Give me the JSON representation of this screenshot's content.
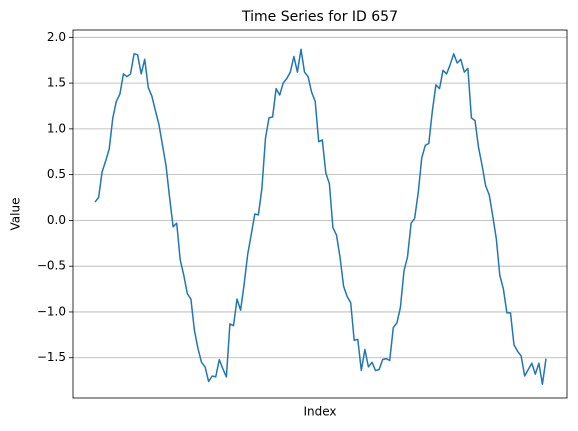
{
  "chart_data": {
    "type": "line",
    "title": "Time Series for ID 657",
    "xlabel": "Index",
    "ylabel": "Value",
    "series": [
      {
        "name": "Value",
        "color": "#1f77b4",
        "values": [
          0.2,
          0.25,
          0.53,
          0.65,
          0.78,
          1.12,
          1.3,
          1.38,
          1.6,
          1.57,
          1.6,
          1.82,
          1.81,
          1.6,
          1.76,
          1.45,
          1.36,
          1.2,
          1.05,
          0.82,
          0.6,
          0.25,
          -0.07,
          -0.03,
          -0.43,
          -0.6,
          -0.8,
          -0.86,
          -1.2,
          -1.4,
          -1.55,
          -1.6,
          -1.76,
          -1.7,
          -1.71,
          -1.52,
          -1.62,
          -1.71,
          -1.13,
          -1.15,
          -0.86,
          -0.98,
          -0.7,
          -0.37,
          -0.15,
          0.07,
          0.06,
          0.35,
          0.9,
          1.12,
          1.13,
          1.44,
          1.37,
          1.5,
          1.55,
          1.62,
          1.79,
          1.62,
          1.87,
          1.62,
          1.57,
          1.4,
          1.3,
          0.86,
          0.88,
          0.52,
          0.4,
          -0.08,
          -0.16,
          -0.4,
          -0.72,
          -0.83,
          -0.9,
          -1.31,
          -1.3,
          -1.64,
          -1.41,
          -1.6,
          -1.55,
          -1.64,
          -1.63,
          -1.52,
          -1.51,
          -1.53,
          -1.17,
          -1.12,
          -0.95,
          -0.55,
          -0.4,
          -0.03,
          0.02,
          0.3,
          0.68,
          0.82,
          0.84,
          1.2,
          1.48,
          1.44,
          1.64,
          1.6,
          1.7,
          1.82,
          1.72,
          1.76,
          1.62,
          1.66,
          1.12,
          1.09,
          0.8,
          0.6,
          0.38,
          0.28,
          0.05,
          -0.2,
          -0.6,
          -0.75,
          -1.01,
          -1.01,
          -1.36,
          -1.43,
          -1.48,
          -1.7,
          -1.63,
          -1.56,
          -1.68,
          -1.56,
          -1.79,
          -1.51
        ]
      }
    ],
    "ylim": [
      -1.94,
      2.08
    ],
    "yticks": [
      {
        "value": -1.5,
        "label": "−1.5"
      },
      {
        "value": -1.0,
        "label": "−1.0"
      },
      {
        "value": -0.5,
        "label": "−0.5"
      },
      {
        "value": 0.0,
        "label": "0.0"
      },
      0.5,
      {
        "value": 1.0,
        "label": "1.0"
      },
      1.5,
      {
        "value": 2.0,
        "label": "2.0"
      }
    ],
    "grid": true
  }
}
